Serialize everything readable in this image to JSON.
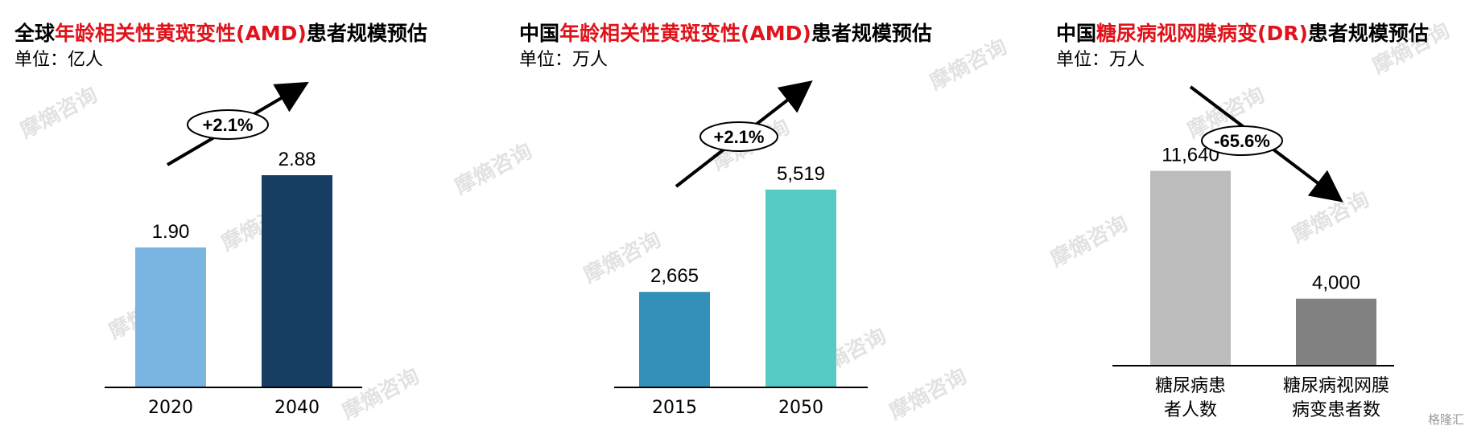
{
  "watermark_text": "摩熵咨询",
  "corner_mark": "格隆汇",
  "chart_data": [
    {
      "type": "bar",
      "title_prefix": "全球",
      "title_highlight": "年龄相关性黄斑变性(AMD)",
      "title_suffix": "患者规模预估",
      "unit": "单位：亿人",
      "categories": [
        "2020",
        "2040"
      ],
      "values": [
        1.9,
        2.88
      ],
      "value_labels": [
        "1.90",
        "2.88"
      ],
      "colors": [
        "#7ab5e2",
        "#163e62"
      ],
      "ylim": [
        0,
        3.6
      ],
      "growth_label": "+2.1%",
      "trend": "up",
      "grid": false,
      "xlabel": "",
      "ylabel": ""
    },
    {
      "type": "bar",
      "title_prefix": "中国",
      "title_highlight": "年龄相关性黄斑变性(AMD)",
      "title_suffix": "患者规模预估",
      "unit": "单位：万人",
      "categories": [
        "2015",
        "2050"
      ],
      "values": [
        2665,
        5519
      ],
      "value_labels": [
        "2,665",
        "5,519"
      ],
      "colors": [
        "#3390b9",
        "#55cbc4"
      ],
      "ylim": [
        0,
        7400
      ],
      "growth_label": "+2.1%",
      "trend": "up",
      "grid": false,
      "xlabel": "",
      "ylabel": ""
    },
    {
      "type": "bar",
      "title_prefix": "中国",
      "title_highlight": "糖尿病视网膜病变(DR)",
      "title_suffix": "患者规模预估",
      "unit": "单位：万人",
      "categories": [
        "糖尿病患者人数",
        "糖尿病视网膜病变患者数"
      ],
      "category_lines": [
        [
          "糖尿病患",
          "者人数"
        ],
        [
          "糖尿病视网膜",
          "病变患者数"
        ]
      ],
      "values": [
        11640,
        4000
      ],
      "value_labels": [
        "11,640",
        "4,000"
      ],
      "colors": [
        "#bcbcbc",
        "#828282"
      ],
      "ylim": [
        0,
        14400
      ],
      "growth_label": "-65.6%",
      "trend": "down",
      "grid": false,
      "xlabel": "",
      "ylabel": ""
    }
  ]
}
